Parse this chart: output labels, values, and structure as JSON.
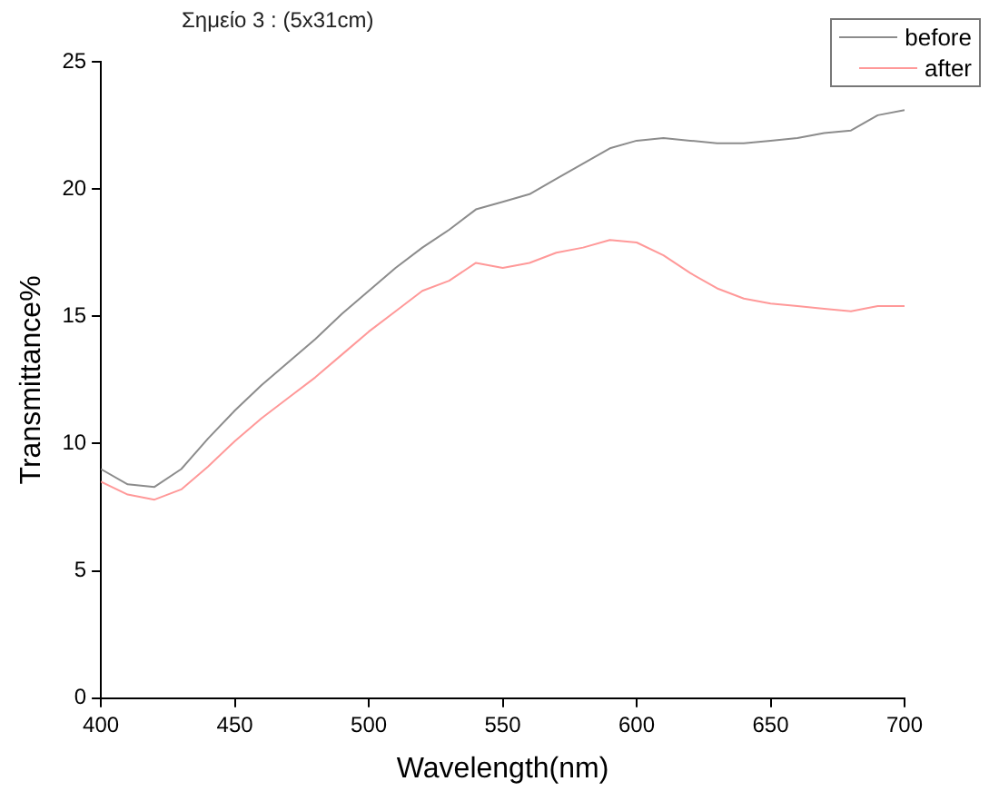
{
  "chart_data": {
    "type": "line",
    "title": "Σημείο 3 : (5x31cm)",
    "xlabel": "Wavelength(nm)",
    "ylabel": "Transmittance%",
    "x": [
      400,
      410,
      420,
      430,
      440,
      450,
      460,
      470,
      480,
      490,
      500,
      510,
      520,
      530,
      540,
      550,
      560,
      570,
      580,
      590,
      600,
      610,
      620,
      630,
      640,
      650,
      660,
      670,
      680,
      690,
      700
    ],
    "series": [
      {
        "name": "before",
        "color": "#8c8c8c",
        "values": [
          9.0,
          8.4,
          8.3,
          9.0,
          10.2,
          11.3,
          12.3,
          13.2,
          14.1,
          15.1,
          16.0,
          16.9,
          17.7,
          18.4,
          19.2,
          19.5,
          19.8,
          20.4,
          21.0,
          21.6,
          21.9,
          22.0,
          21.9,
          21.8,
          21.8,
          21.9,
          22.0,
          22.2,
          22.3,
          22.9,
          23.1
        ]
      },
      {
        "name": "after",
        "color": "#ff9999",
        "values": [
          8.5,
          8.0,
          7.8,
          8.2,
          9.1,
          10.1,
          11.0,
          11.8,
          12.6,
          13.5,
          14.4,
          15.2,
          16.0,
          16.4,
          17.1,
          16.9,
          17.1,
          17.5,
          17.7,
          18.0,
          17.9,
          17.4,
          16.7,
          16.1,
          15.7,
          15.5,
          15.4,
          15.3,
          15.2,
          15.4,
          15.4
        ]
      }
    ],
    "xlim": [
      400,
      700
    ],
    "xticks": [
      400,
      450,
      500,
      550,
      600,
      650,
      700
    ],
    "ylim": [
      0,
      25
    ],
    "yticks": [
      0,
      5,
      10,
      15,
      20,
      25
    ],
    "grid": false,
    "legend": "top right",
    "marker": "none",
    "line_style": "solid"
  }
}
